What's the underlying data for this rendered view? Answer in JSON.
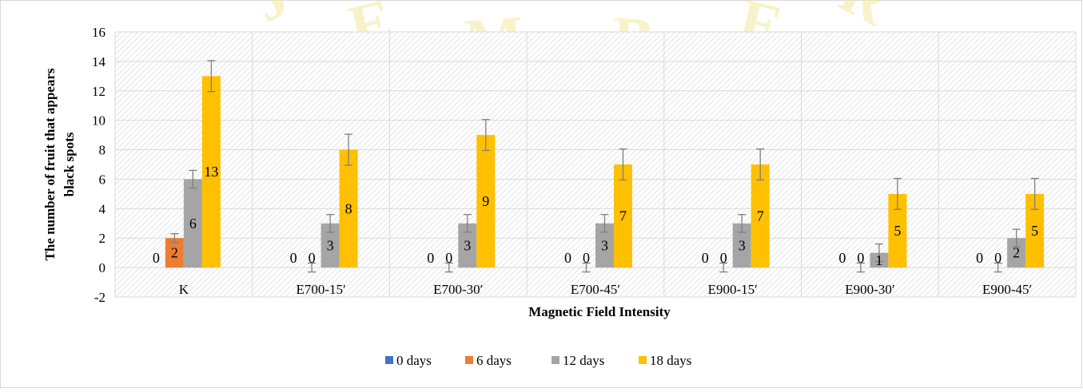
{
  "chart_data": {
    "type": "bar",
    "title": "",
    "xlabel": "Magnetic Field Intensity",
    "ylabel": "The number of fruit that appears black spots",
    "ylim": [
      -2,
      16
    ],
    "yticks": [
      -2,
      0,
      2,
      4,
      6,
      8,
      10,
      12,
      14,
      16
    ],
    "categories": [
      "K",
      "E700-15′",
      "E700-30′",
      "E700-45′",
      "E900-15′",
      "E900-30′",
      "E900-45′"
    ],
    "series": [
      {
        "name": "0 days",
        "color": "#4472c4",
        "values": [
          0,
          0,
          0,
          0,
          0,
          0,
          0
        ],
        "error": [
          0,
          0,
          0,
          0,
          0,
          0,
          0
        ]
      },
      {
        "name": "6 days",
        "color": "#ed7d31",
        "values": [
          2,
          0,
          0,
          0,
          0,
          0,
          0
        ],
        "error": [
          0.3,
          0.3,
          0.3,
          0.3,
          0.3,
          0.3,
          0.3
        ]
      },
      {
        "name": "12 days",
        "color": "#a5a5a5",
        "values": [
          6,
          3,
          3,
          3,
          3,
          1,
          2
        ],
        "error": [
          0.6,
          0.6,
          0.6,
          0.6,
          0.6,
          0.6,
          0.6
        ]
      },
      {
        "name": "18 days",
        "color": "#ffc000",
        "values": [
          13,
          8,
          9,
          7,
          7,
          5,
          5
        ],
        "error": [
          1.05,
          1.05,
          1.05,
          1.05,
          1.05,
          1.05,
          1.05
        ]
      }
    ],
    "data_labels": true,
    "grid": true,
    "legend_position": "bottom",
    "error_bars": true
  },
  "watermark": {
    "text": "JEMBER",
    "color": "#f3e9a0"
  }
}
